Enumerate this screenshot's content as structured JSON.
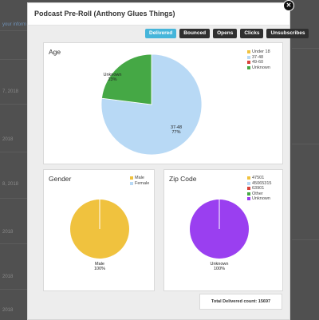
{
  "background": {
    "fragments": [
      "your inform",
      "7, 2018",
      "2018",
      "2018",
      "8, 2018",
      "2018",
      "2018",
      "2018"
    ]
  },
  "modal": {
    "title": "Podcast Pre-Roll (Anthony Glues Things)",
    "close_icon": "close-icon",
    "tabs": [
      {
        "label": "Delivered",
        "active": true
      },
      {
        "label": "Bounced",
        "active": false
      },
      {
        "label": "Opens",
        "active": false
      },
      {
        "label": "Clicks",
        "active": false
      },
      {
        "label": "Unsubscribes",
        "active": false
      }
    ],
    "total_label": "Total Delivered count: 15697"
  },
  "chart_data": [
    {
      "type": "pie",
      "title": "Age",
      "legend": [
        "Under 18",
        "37-48",
        "49-60",
        "Unknown"
      ],
      "colors": {
        "Under 18": "#f0c23e",
        "37-48": "#b8d9f5",
        "49-60": "#d9423a",
        "Unknown": "#45a845"
      },
      "slices": [
        {
          "label": "37-48",
          "value": 77,
          "display": "37-48\n77%"
        },
        {
          "label": "Unknown",
          "value": 23,
          "display": "Unknown\n23%"
        }
      ],
      "legend_position": "top-right"
    },
    {
      "type": "pie",
      "title": "Gender",
      "legend": [
        "Male",
        "Female"
      ],
      "colors": {
        "Male": "#f0c23e",
        "Female": "#b8d9f5"
      },
      "slices": [
        {
          "label": "Male",
          "value": 100,
          "display": "Male\n100%"
        }
      ],
      "legend_position": "top-right"
    },
    {
      "type": "pie",
      "title": "Zip Code",
      "legend": [
        "47501",
        "45065315",
        "63901",
        "Other",
        "Unknown"
      ],
      "colors": {
        "47501": "#f0c23e",
        "45065315": "#b8d9f5",
        "63901": "#d9423a",
        "Other": "#45a845",
        "Unknown": "#9a3ff0"
      },
      "slices": [
        {
          "label": "Unknown",
          "value": 100,
          "display": "Unknown\n100%"
        }
      ],
      "legend_position": "top-right"
    }
  ]
}
